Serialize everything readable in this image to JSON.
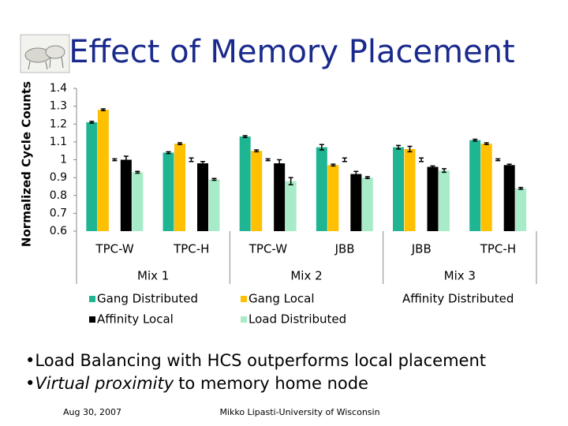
{
  "chart_data": {
    "type": "bar",
    "title": "Effect of Memory Placement",
    "y_label": "Normalized Cycle Counts",
    "categories": [
      "TPC-W",
      "TPC-H",
      "TPC-W",
      "JBB",
      "JBB",
      "TPC-H"
    ],
    "groups": [
      "Mix 1",
      "Mix 2",
      "Mix 3"
    ],
    "ylim": [
      0.6,
      1.4
    ],
    "yticks": [
      0.6,
      0.7,
      0.8,
      0.9,
      1,
      1.1,
      1.2,
      1.3,
      1.4
    ],
    "series": [
      {
        "name": "Gang Distributed",
        "color": "#1fb592",
        "values": [
          1.21,
          1.04,
          1.13,
          1.07,
          1.07,
          1.11
        ],
        "errors": [
          0.005,
          0.005,
          0.005,
          0.015,
          0.01,
          0.005
        ]
      },
      {
        "name": "Gang Local",
        "color": "#ffc000",
        "values": [
          1.28,
          1.09,
          1.05,
          0.97,
          1.06,
          1.09
        ],
        "errors": [
          0.005,
          0.005,
          0.005,
          0.005,
          0.015,
          0.005
        ]
      },
      {
        "name": "Affinity Distributed",
        "color": "#ffffff",
        "values": [
          1.0,
          1.0,
          1.0,
          1.0,
          1.0,
          1.0
        ],
        "errors": [
          0.005,
          0.01,
          0.005,
          0.01,
          0.01,
          0.005
        ]
      },
      {
        "name": "Affinity Local",
        "color": "#000000",
        "values": [
          1.0,
          0.98,
          0.98,
          0.92,
          0.96,
          0.97
        ],
        "errors": [
          0.02,
          0.01,
          0.02,
          0.015,
          0.005,
          0.005
        ]
      },
      {
        "name": "Load Distributed",
        "color": "#a8ebc9",
        "values": [
          0.93,
          0.89,
          0.88,
          0.9,
          0.94,
          0.84
        ],
        "errors": [
          0.005,
          0.005,
          0.02,
          0.005,
          0.01,
          0.005
        ]
      }
    ]
  },
  "bullets": [
    {
      "text": "Load Balancing with HCS outperforms local placement"
    },
    {
      "emphasis": "Virtual proximity",
      "text": "to memory home node"
    }
  ],
  "footer": {
    "date": "Aug 30, 2007",
    "author": "Mikko Lipasti-University of Wisconsin"
  }
}
